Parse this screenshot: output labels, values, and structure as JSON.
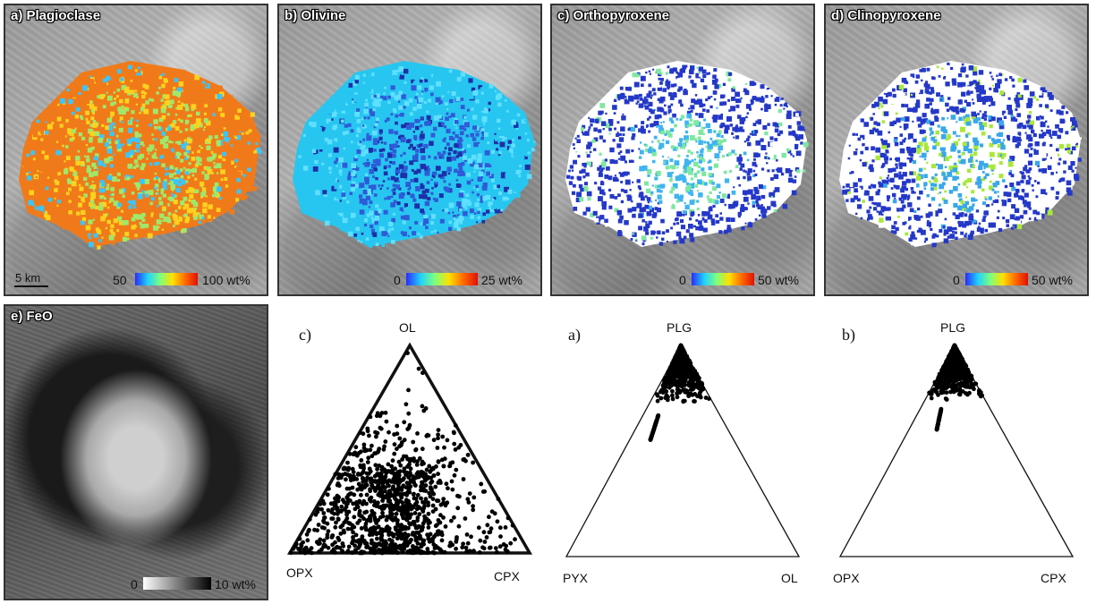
{
  "map_panels": [
    {
      "label": "a) Plagioclase",
      "cbar_min": "50",
      "cbar_max": "100 wt%",
      "scale": "5 km",
      "colormap": [
        "#2b2bff",
        "#1fd0ff",
        "#7dff7d",
        "#ffe000",
        "#ff6a00",
        "#e01000"
      ]
    },
    {
      "label": "b) Olivine",
      "cbar_min": "0",
      "cbar_max": "25 wt%",
      "colormap": [
        "#2b2bff",
        "#1fd0ff",
        "#7dff7d",
        "#ffe000",
        "#ff6a00",
        "#e01000"
      ]
    },
    {
      "label": "c) Orthopyroxene",
      "cbar_min": "0",
      "cbar_max": "50 wt%",
      "colormap": [
        "#2b2bff",
        "#1fd0ff",
        "#7dff7d",
        "#ffe000",
        "#ff6a00",
        "#e01000"
      ]
    },
    {
      "label": "d) Clinopyroxene",
      "cbar_min": "0",
      "cbar_max": "50 wt%",
      "colormap": [
        "#2b2bff",
        "#1fd0ff",
        "#7dff7d",
        "#ffe000",
        "#ff6a00",
        "#e01000"
      ]
    }
  ],
  "feo_panel": {
    "label": "e) FeO",
    "cbar_min": "0",
    "cbar_max": "10 wt%"
  },
  "ternaries": [
    {
      "letter": "c)",
      "top": "OL",
      "left": "OPX",
      "right": "CPX"
    },
    {
      "letter": "a)",
      "top": "PLG",
      "left": "PYX",
      "right": "OL"
    },
    {
      "letter": "b)",
      "top": "PLG",
      "left": "OPX",
      "right": "CPX"
    }
  ]
}
